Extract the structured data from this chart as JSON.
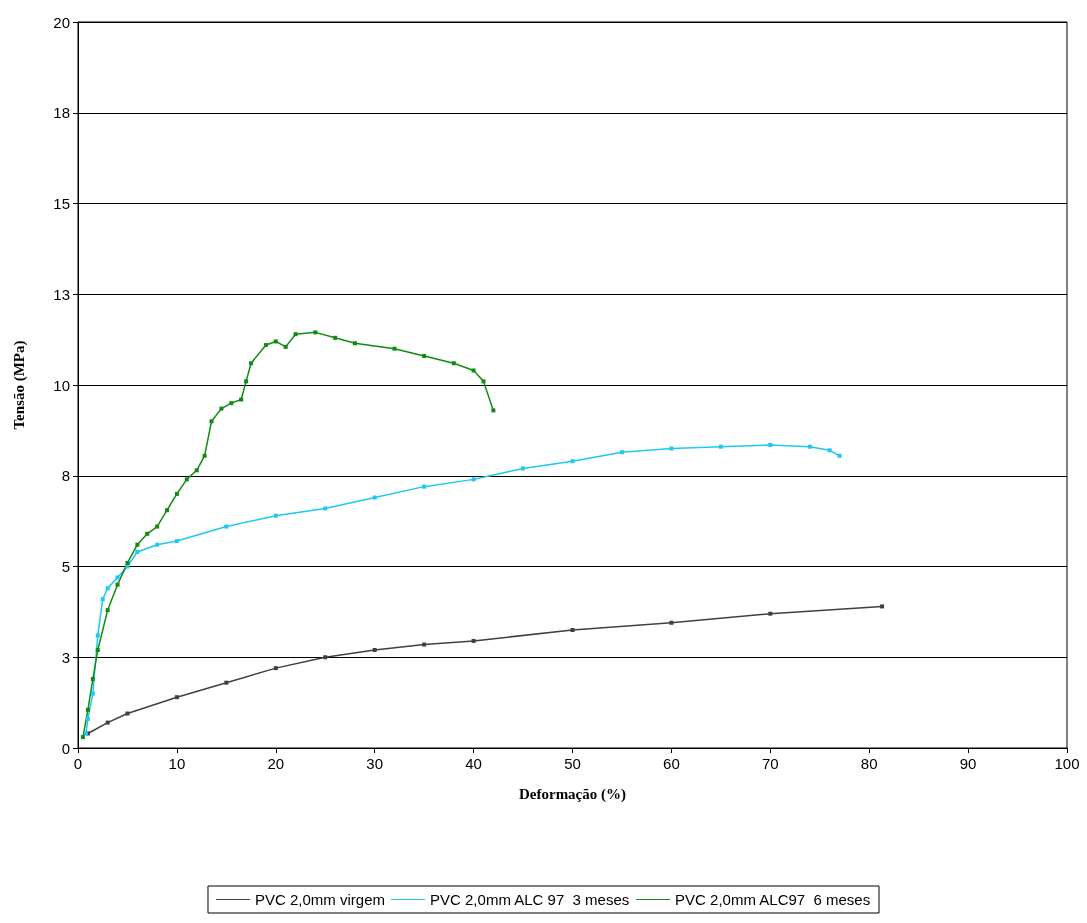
{
  "chart_data": {
    "type": "line",
    "xlabel": "Deformação (%)",
    "ylabel": "Tensão (MPa)",
    "xlim": [
      0,
      100
    ],
    "xticks": [
      0,
      10,
      20,
      30,
      40,
      50,
      60,
      70,
      80,
      90,
      100
    ],
    "ylim": [
      0,
      20
    ],
    "yticks": [
      0,
      {
        "value": 2.5,
        "label": "3"
      },
      5,
      {
        "value": 7.5,
        "label": "8"
      },
      10,
      {
        "value": 12.5,
        "label": "13"
      },
      15,
      {
        "value": 17.5,
        "label": "18"
      },
      20
    ],
    "grid": "y",
    "legend": "bottom",
    "marker": "square",
    "line_style": "solid",
    "series": [
      {
        "name": "PVC 2,0mm virgem",
        "color": "#404040",
        "x": [
          1,
          3,
          5,
          10,
          15,
          20,
          25,
          30,
          35,
          40,
          50,
          60,
          70,
          81.3
        ],
        "values": [
          0.4,
          0.7,
          0.95,
          1.4,
          1.8,
          2.2,
          2.5,
          2.7,
          2.85,
          2.95,
          3.25,
          3.45,
          3.7,
          3.9
        ]
      },
      {
        "name": "PVC 2,0mm ALC 97  3 meses",
        "color": "#1ec8f0",
        "x": [
          0.8,
          1,
          1.5,
          2,
          2.5,
          3,
          4,
          5,
          6,
          8,
          10,
          15,
          20,
          25,
          30,
          35,
          40,
          45,
          50,
          55,
          60,
          65,
          70,
          74,
          76,
          77
        ],
        "values": [
          0.4,
          0.8,
          1.5,
          3.1,
          4.1,
          4.4,
          4.7,
          5.0,
          5.4,
          5.6,
          5.7,
          6.1,
          6.4,
          6.6,
          6.9,
          7.2,
          7.4,
          7.7,
          7.9,
          8.15,
          8.25,
          8.3,
          8.35,
          8.3,
          8.2,
          8.05
        ]
      },
      {
        "name": "PVC 2,0mm ALC97  6 meses",
        "color": "#138a13",
        "x": [
          0.5,
          1,
          1.5,
          2,
          3,
          4,
          5,
          6,
          7,
          8,
          9,
          10,
          11,
          12,
          12.8,
          13.5,
          14.5,
          15.5,
          16.5,
          17,
          17.5,
          19,
          20,
          21,
          22,
          24,
          26,
          28,
          32,
          35,
          38,
          40,
          41,
          42
        ],
        "values": [
          0.3,
          1.05,
          1.9,
          2.7,
          3.8,
          4.5,
          5.1,
          5.6,
          5.9,
          6.1,
          6.55,
          7.0,
          7.4,
          7.65,
          8.05,
          9.0,
          9.35,
          9.5,
          9.6,
          10.1,
          10.6,
          11.1,
          11.2,
          11.05,
          11.4,
          11.45,
          11.3,
          11.15,
          11.0,
          10.8,
          10.6,
          10.4,
          10.1,
          9.3
        ]
      }
    ]
  }
}
